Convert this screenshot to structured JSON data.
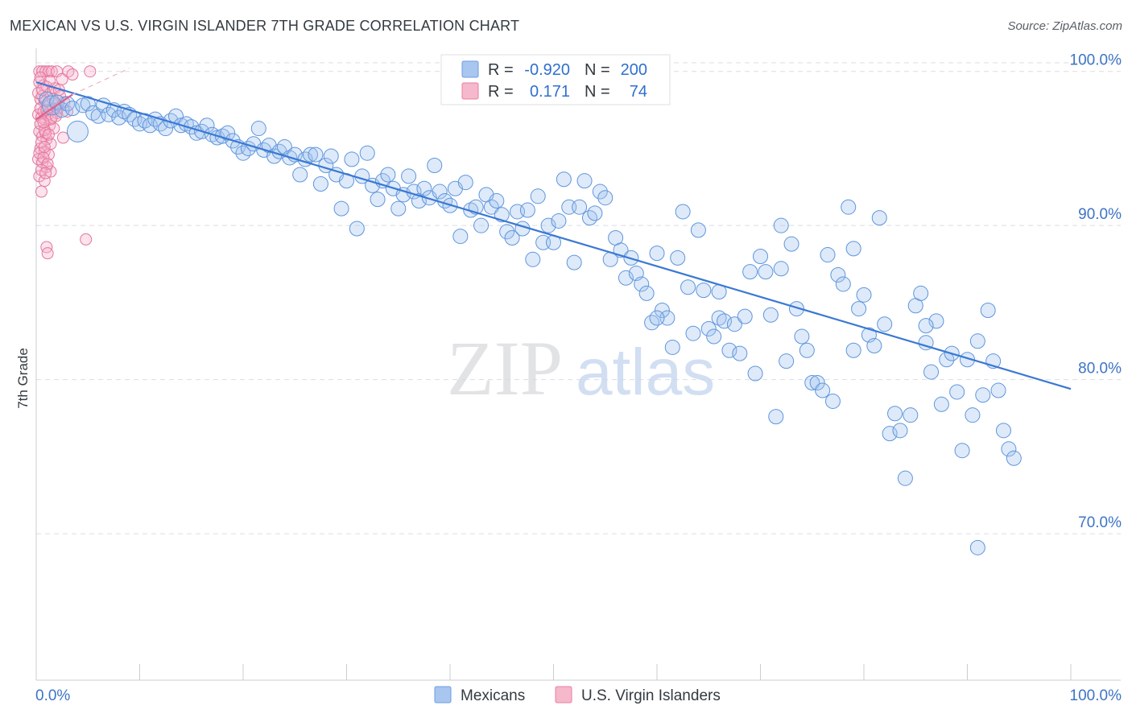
{
  "header": {
    "title": "MEXICAN VS U.S. VIRGIN ISLANDER 7TH GRADE CORRELATION CHART",
    "source": "Source: ZipAtlas.com"
  },
  "watermark": {
    "zip": "ZIP",
    "atlas": "atlas"
  },
  "stats_legend": [
    {
      "r_label": "R =",
      "r_value": "-0.920",
      "n_label": "N =",
      "n_value": "200",
      "color": "#a8c6f0",
      "stroke": "#6d9ee0"
    },
    {
      "r_label": "R =",
      "r_value": "0.171",
      "n_label": "N =",
      "n_value": "74",
      "color": "#f6b8cb",
      "stroke": "#e87fa0"
    }
  ],
  "bottom_legend": [
    {
      "label": "Mexicans",
      "color": "#a8c6f0",
      "stroke": "#6d9ee0"
    },
    {
      "label": "U.S. Virgin Islanders",
      "color": "#f6b8cb",
      "stroke": "#e87fa0"
    }
  ],
  "chart_data": {
    "type": "scatter",
    "title": "MEXICAN VS U.S. VIRGIN ISLANDER 7TH GRADE CORRELATION CHART",
    "xlabel": "",
    "ylabel": "7th Grade",
    "x_tick_labels": [
      "0.0%",
      "100.0%"
    ],
    "y_tick_labels": [
      "100.0%",
      "90.0%",
      "80.0%",
      "70.0%"
    ],
    "y_ticks": [
      100,
      90,
      80,
      70
    ],
    "xlim": [
      0,
      100
    ],
    "ylim": [
      60.5,
      101.5
    ],
    "grid": true,
    "colors": {
      "mexicans": "#3a78d4",
      "virgin_islanders": "#e0608c"
    },
    "series": [
      {
        "name": "Mexicans",
        "trend": {
          "x0": 0,
          "y0": 99.3,
          "x1": 100,
          "y1": 79.4
        },
        "points": [
          [
            1,
            98.2
          ],
          [
            1.5,
            97.8
          ],
          [
            2,
            98
          ],
          [
            2.5,
            97.5
          ],
          [
            3,
            97.9
          ],
          [
            3.5,
            97.6
          ],
          [
            4,
            96.1
          ],
          [
            4.5,
            97.8
          ],
          [
            5,
            97.9
          ],
          [
            5.5,
            97.3
          ],
          [
            6,
            97.1
          ],
          [
            6.5,
            97.8
          ],
          [
            7,
            97.2
          ],
          [
            7.5,
            97.5
          ],
          [
            8,
            97.0
          ],
          [
            8.5,
            97.4
          ],
          [
            9,
            97.2
          ],
          [
            9.5,
            96.9
          ],
          [
            10,
            96.6
          ],
          [
            10.5,
            96.8
          ],
          [
            11,
            96.5
          ],
          [
            11.5,
            96.9
          ],
          [
            12,
            96.6
          ],
          [
            12.5,
            96.3
          ],
          [
            13,
            96.8
          ],
          [
            13.5,
            97.1
          ],
          [
            14,
            96.5
          ],
          [
            14.5,
            96.6
          ],
          [
            15,
            96.4
          ],
          [
            15.5,
            96.0
          ],
          [
            16,
            96.1
          ],
          [
            16.5,
            96.5
          ],
          [
            17,
            95.9
          ],
          [
            17.5,
            95.7
          ],
          [
            18,
            95.8
          ],
          [
            18.5,
            96.0
          ],
          [
            19,
            95.5
          ],
          [
            19.5,
            95.1
          ],
          [
            20,
            94.7
          ],
          [
            20.5,
            95.0
          ],
          [
            21,
            95.3
          ],
          [
            21.5,
            96.3
          ],
          [
            22,
            94.9
          ],
          [
            22.5,
            95.2
          ],
          [
            23,
            94.5
          ],
          [
            23.5,
            94.8
          ],
          [
            24,
            95.1
          ],
          [
            24.5,
            94.4
          ],
          [
            25,
            94.6
          ],
          [
            25.5,
            93.3
          ],
          [
            26,
            94.3
          ],
          [
            26.5,
            94.6
          ],
          [
            27,
            94.6
          ],
          [
            27.5,
            92.7
          ],
          [
            28,
            93.9
          ],
          [
            28.5,
            94.5
          ],
          [
            29,
            93.3
          ],
          [
            29.5,
            91.1
          ],
          [
            30,
            92.9
          ],
          [
            30.5,
            94.3
          ],
          [
            31,
            89.8
          ],
          [
            31.5,
            93.2
          ],
          [
            32,
            94.7
          ],
          [
            32.5,
            92.6
          ],
          [
            33,
            91.7
          ],
          [
            33.5,
            92.9
          ],
          [
            34,
            93.3
          ],
          [
            34.5,
            92.4
          ],
          [
            35,
            91.1
          ],
          [
            35.5,
            92.0
          ],
          [
            36,
            93.2
          ],
          [
            36.5,
            92.2
          ],
          [
            37,
            91.6
          ],
          [
            37.5,
            92.4
          ],
          [
            38,
            91.8
          ],
          [
            38.5,
            93.9
          ],
          [
            39,
            92.2
          ],
          [
            39.5,
            91.6
          ],
          [
            40,
            91.3
          ],
          [
            40.5,
            92.4
          ],
          [
            41,
            89.3
          ],
          [
            41.5,
            92.8
          ],
          [
            42,
            91.0
          ],
          [
            42.5,
            91.2
          ],
          [
            43,
            90.0
          ],
          [
            43.5,
            92.0
          ],
          [
            44,
            91.2
          ],
          [
            44.5,
            91.6
          ],
          [
            45,
            90.7
          ],
          [
            45.5,
            89.6
          ],
          [
            46,
            89.2
          ],
          [
            46.5,
            90.9
          ],
          [
            47,
            89.8
          ],
          [
            47.5,
            91.0
          ],
          [
            48,
            87.8
          ],
          [
            48.5,
            91.9
          ],
          [
            49,
            88.9
          ],
          [
            49.5,
            90.0
          ],
          [
            50,
            88.9
          ],
          [
            50.5,
            90.3
          ],
          [
            51,
            93.0
          ],
          [
            51.5,
            91.2
          ],
          [
            52,
            87.6
          ],
          [
            52.5,
            91.2
          ],
          [
            53,
            92.9
          ],
          [
            53.5,
            90.5
          ],
          [
            54,
            90.8
          ],
          [
            54.5,
            92.2
          ],
          [
            55,
            91.8
          ],
          [
            55.5,
            87.8
          ],
          [
            56,
            89.2
          ],
          [
            56.5,
            88.4
          ],
          [
            57,
            86.6
          ],
          [
            57.5,
            87.9
          ],
          [
            58,
            86.9
          ],
          [
            58.5,
            86.2
          ],
          [
            59,
            85.6
          ],
          [
            59.5,
            83.7
          ],
          [
            60,
            88.2
          ],
          [
            60.5,
            84.5
          ],
          [
            61,
            84.0
          ],
          [
            61.5,
            82.1
          ],
          [
            62,
            87.9
          ],
          [
            62.5,
            90.9
          ],
          [
            63,
            86.0
          ],
          [
            63.5,
            83.0
          ],
          [
            64,
            89.7
          ],
          [
            64.5,
            85.8
          ],
          [
            65,
            83.3
          ],
          [
            65.5,
            82.8
          ],
          [
            66,
            84.0
          ],
          [
            66.5,
            83.8
          ],
          [
            67,
            81.9
          ],
          [
            67.5,
            83.6
          ],
          [
            68,
            81.7
          ],
          [
            68.5,
            84.1
          ],
          [
            69,
            87.0
          ],
          [
            69.5,
            80.4
          ],
          [
            70,
            88.0
          ],
          [
            70.5,
            87.0
          ],
          [
            71,
            84.2
          ],
          [
            71.5,
            77.6
          ],
          [
            72,
            90.0
          ],
          [
            72.5,
            81.2
          ],
          [
            73,
            88.8
          ],
          [
            73.5,
            84.6
          ],
          [
            74,
            82.8
          ],
          [
            74.5,
            81.9
          ],
          [
            75,
            79.8
          ],
          [
            75.5,
            79.8
          ],
          [
            76,
            79.3
          ],
          [
            76.5,
            88.1
          ],
          [
            77,
            78.6
          ],
          [
            77.5,
            86.8
          ],
          [
            78,
            86.2
          ],
          [
            78.5,
            91.2
          ],
          [
            79,
            81.9
          ],
          [
            79.5,
            84.6
          ],
          [
            80,
            85.5
          ],
          [
            80.5,
            82.9
          ],
          [
            81,
            82.2
          ],
          [
            81.5,
            90.5
          ],
          [
            82,
            83.6
          ],
          [
            82.5,
            76.5
          ],
          [
            83,
            77.8
          ],
          [
            83.5,
            76.7
          ],
          [
            84,
            73.6
          ],
          [
            84.5,
            77.7
          ],
          [
            85,
            84.8
          ],
          [
            85.5,
            85.6
          ],
          [
            86,
            82.4
          ],
          [
            86.5,
            80.5
          ],
          [
            87,
            83.8
          ],
          [
            87.5,
            78.4
          ],
          [
            88,
            81.3
          ],
          [
            88.5,
            81.7
          ],
          [
            89,
            79.2
          ],
          [
            89.5,
            75.4
          ],
          [
            90,
            81.3
          ],
          [
            90.5,
            77.7
          ],
          [
            91,
            82.5
          ],
          [
            91.5,
            79.0
          ],
          [
            92,
            84.5
          ],
          [
            92.5,
            81.2
          ],
          [
            93,
            79.3
          ],
          [
            93.5,
            76.7
          ],
          [
            94,
            75.5
          ],
          [
            94.5,
            74.9
          ],
          [
            91,
            69.1
          ],
          [
            86,
            83.5
          ],
          [
            79,
            88.5
          ],
          [
            72,
            87.2
          ],
          [
            66,
            85.7
          ],
          [
            60,
            84.0
          ]
        ]
      },
      {
        "name": "U.S. Virgin Islanders",
        "trend": {
          "x0": 0,
          "y0": 96.9,
          "x1": 3.5,
          "y1": 98.5
        },
        "points": [
          [
            0.3,
            100
          ],
          [
            0.6,
            100
          ],
          [
            0.9,
            100
          ],
          [
            1.2,
            100
          ],
          [
            1.5,
            100
          ],
          [
            2.0,
            100
          ],
          [
            2.5,
            99.5
          ],
          [
            3.1,
            100
          ],
          [
            3.5,
            99.8
          ],
          [
            5.2,
            100
          ],
          [
            0.3,
            99.3
          ],
          [
            0.7,
            99.1
          ],
          [
            1.0,
            99.0
          ],
          [
            1.4,
            98.6
          ],
          [
            1.8,
            98.9
          ],
          [
            2.3,
            98.4
          ],
          [
            0.4,
            98.2
          ],
          [
            0.8,
            98.0
          ],
          [
            1.2,
            97.8
          ],
          [
            1.6,
            97.6
          ],
          [
            2.0,
            97.3
          ],
          [
            0.2,
            97.2
          ],
          [
            0.5,
            97.0
          ],
          [
            0.9,
            96.8
          ],
          [
            1.3,
            96.5
          ],
          [
            1.7,
            96.3
          ],
          [
            0.3,
            96.1
          ],
          [
            0.6,
            95.8
          ],
          [
            1.0,
            95.6
          ],
          [
            1.4,
            95.3
          ],
          [
            2.6,
            95.7
          ],
          [
            0.4,
            95.0
          ],
          [
            0.8,
            94.8
          ],
          [
            1.2,
            94.6
          ],
          [
            0.2,
            94.3
          ],
          [
            0.6,
            94.1
          ],
          [
            1.0,
            93.8
          ],
          [
            1.4,
            93.5
          ],
          [
            0.3,
            93.2
          ],
          [
            0.8,
            92.9
          ],
          [
            0.5,
            92.2
          ],
          [
            1.0,
            88.6
          ],
          [
            1.1,
            88.2
          ],
          [
            4.8,
            89.1
          ],
          [
            0.4,
            97.6
          ],
          [
            0.7,
            97.4
          ],
          [
            1.1,
            97.2
          ],
          [
            1.5,
            97.0
          ],
          [
            0.9,
            96.0
          ],
          [
            0.5,
            95.4
          ],
          [
            1.8,
            97.9
          ],
          [
            0.6,
            98.4
          ],
          [
            1.3,
            99.4
          ],
          [
            2.2,
            98.8
          ],
          [
            0.4,
            96.6
          ],
          [
            0.8,
            96.2
          ],
          [
            1.2,
            95.9
          ],
          [
            0.3,
            94.7
          ],
          [
            0.7,
            94.4
          ],
          [
            1.1,
            94.0
          ],
          [
            0.5,
            93.6
          ],
          [
            0.9,
            93.4
          ],
          [
            1.6,
            98.2
          ],
          [
            2.1,
            97.6
          ],
          [
            0.2,
            98.6
          ],
          [
            0.6,
            98.8
          ],
          [
            1.0,
            97.5
          ],
          [
            1.4,
            96.9
          ],
          [
            0.8,
            95.1
          ],
          [
            1.9,
            97.1
          ],
          [
            0.4,
            99.6
          ],
          [
            2.7,
            98.0
          ],
          [
            3.0,
            97.4
          ],
          [
            0.7,
            96.7
          ]
        ]
      }
    ]
  }
}
